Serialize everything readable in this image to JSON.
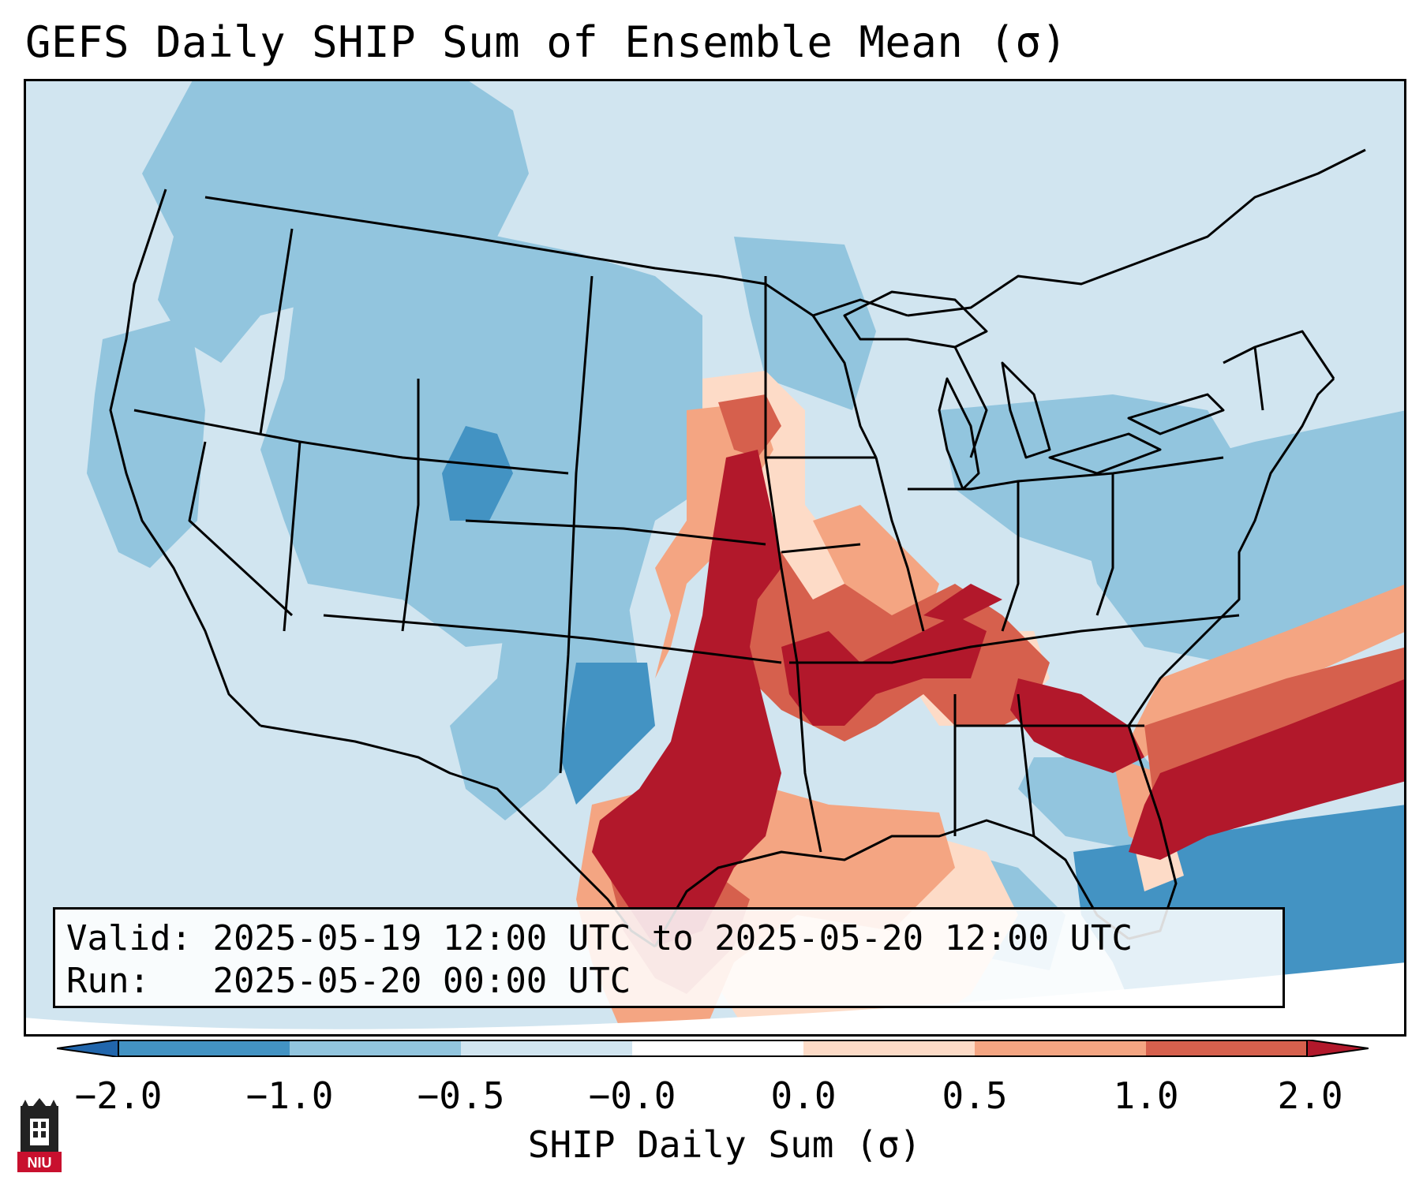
{
  "title": "GEFS Daily SHIP Sum of Ensemble Mean (σ)",
  "info": {
    "valid_label": "Valid:",
    "valid_value": "2025-05-19 12:00 UTC to 2025-05-20 12:00 UTC",
    "run_label": "Run:",
    "run_value": "2025-05-20 00:00 UTC"
  },
  "colorbar": {
    "label": "SHIP Daily Sum (σ)",
    "ticks": [
      "−2.0",
      "−1.0",
      "−0.5",
      "−0.0",
      "0.0",
      "0.5",
      "1.0",
      "2.0"
    ],
    "colors": [
      "#4393c3",
      "#92c5de",
      "#d1e5f0",
      "#ffffff",
      "#fddbc7",
      "#f4a582",
      "#d6604d",
      "#b2182b"
    ],
    "extend": "both"
  },
  "logo": {
    "text": "NIU"
  },
  "colors": {
    "background_ocean": "#d1e5f0",
    "state_borders": "#000000"
  }
}
